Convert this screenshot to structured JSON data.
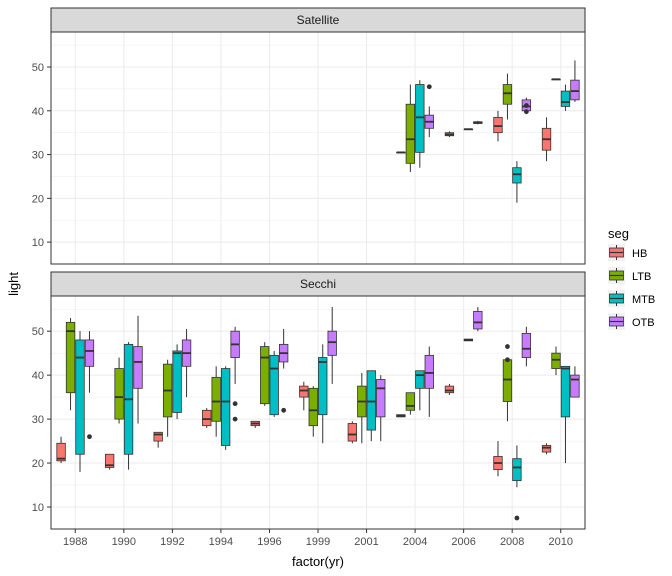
{
  "chart_data": {
    "type": "boxplot",
    "xlabel": "factor(yr)",
    "ylabel": "light",
    "x_categories": [
      "1988",
      "1990",
      "1992",
      "1994",
      "1996",
      "1999",
      "2001",
      "2004",
      "2006",
      "2008",
      "2010"
    ],
    "ylim": [
      5,
      58
    ],
    "y_ticks": [
      10,
      20,
      30,
      40,
      50
    ],
    "grid": true,
    "legend": {
      "title": "seg",
      "position": "right",
      "entries": [
        {
          "key": "HB",
          "label": "HB",
          "color": "#F8766D"
        },
        {
          "key": "LTB",
          "label": "LTB",
          "color": "#7CAE00"
        },
        {
          "key": "MTB",
          "label": "MTB",
          "color": "#00BFC4"
        },
        {
          "key": "OTB",
          "label": "OTB",
          "color": "#C77CFF"
        }
      ]
    },
    "panels": [
      {
        "strip": "Satellite",
        "boxes": [
          {
            "year": "2004",
            "seg": "HB",
            "lw": 30.5,
            "q1": 30.5,
            "med": 30.5,
            "q3": 30.5,
            "uw": 30.5,
            "outliers": []
          },
          {
            "year": "2004",
            "seg": "LTB",
            "lw": 26,
            "q1": 28,
            "med": 33.5,
            "q3": 41.5,
            "uw": 46,
            "outliers": []
          },
          {
            "year": "2004",
            "seg": "MTB",
            "lw": 27,
            "q1": 30.5,
            "med": 38.5,
            "q3": 46,
            "uw": 47,
            "outliers": []
          },
          {
            "year": "2004",
            "seg": "OTB",
            "lw": 34,
            "q1": 36,
            "med": 37.5,
            "q3": 39,
            "uw": 41,
            "outliers": [
              45.5
            ]
          },
          {
            "year": "2006",
            "seg": "HB",
            "lw": 34,
            "q1": 34.3,
            "med": 34.6,
            "q3": 35,
            "uw": 35.3,
            "outliers": []
          },
          {
            "year": "2006",
            "seg": "MTB",
            "lw": 35.8,
            "q1": 35.8,
            "med": 35.8,
            "q3": 35.8,
            "uw": 35.8,
            "outliers": []
          },
          {
            "year": "2006",
            "seg": "OTB",
            "lw": 36.9,
            "q1": 37.1,
            "med": 37.3,
            "q3": 37.5,
            "uw": 37.7,
            "outliers": []
          },
          {
            "year": "2008",
            "seg": "HB",
            "lw": 33,
            "q1": 35,
            "med": 36.5,
            "q3": 38.5,
            "uw": 40,
            "outliers": []
          },
          {
            "year": "2008",
            "seg": "LTB",
            "lw": 38,
            "q1": 41.5,
            "med": 44,
            "q3": 46,
            "uw": 48.5,
            "outliers": []
          },
          {
            "year": "2008",
            "seg": "MTB",
            "lw": 19,
            "q1": 23.5,
            "med": 25.5,
            "q3": 27,
            "uw": 28.5,
            "outliers": []
          },
          {
            "year": "2008",
            "seg": "OTB",
            "lw": 40,
            "q1": 40,
            "med": 41,
            "q3": 42.5,
            "uw": 43,
            "outliers": [
              39.8,
              41.2
            ]
          },
          {
            "year": "2010",
            "seg": "HB",
            "lw": 28.5,
            "q1": 31,
            "med": 33.5,
            "q3": 36,
            "uw": 38.5,
            "outliers": []
          },
          {
            "year": "2010",
            "seg": "LTB",
            "lw": 47.2,
            "q1": 47.2,
            "med": 47.2,
            "q3": 47.2,
            "uw": 47.2,
            "outliers": []
          },
          {
            "year": "2010",
            "seg": "MTB",
            "lw": 40,
            "q1": 41,
            "med": 42,
            "q3": 44.5,
            "uw": 46,
            "outliers": []
          },
          {
            "year": "2010",
            "seg": "OTB",
            "lw": 42,
            "q1": 42.5,
            "med": 44.5,
            "q3": 47,
            "uw": 51.5,
            "outliers": []
          }
        ]
      },
      {
        "strip": "Secchi",
        "boxes": [
          {
            "year": "1988",
            "seg": "HB",
            "lw": 20,
            "q1": 20.5,
            "med": 21,
            "q3": 24.5,
            "uw": 26,
            "outliers": []
          },
          {
            "year": "1988",
            "seg": "LTB",
            "lw": 32,
            "q1": 36,
            "med": 50,
            "q3": 52,
            "uw": 53,
            "outliers": []
          },
          {
            "year": "1988",
            "seg": "MTB",
            "lw": 18,
            "q1": 22,
            "med": 44,
            "q3": 48,
            "uw": 50,
            "outliers": []
          },
          {
            "year": "1988",
            "seg": "OTB",
            "lw": 36,
            "q1": 42,
            "med": 45.5,
            "q3": 48,
            "uw": 50,
            "outliers": [
              26
            ]
          },
          {
            "year": "1990",
            "seg": "HB",
            "lw": 18.5,
            "q1": 19,
            "med": 19.5,
            "q3": 22,
            "uw": 22,
            "outliers": []
          },
          {
            "year": "1990",
            "seg": "LTB",
            "lw": 29,
            "q1": 30,
            "med": 35,
            "q3": 41.5,
            "uw": 44,
            "outliers": []
          },
          {
            "year": "1990",
            "seg": "MTB",
            "lw": 18.5,
            "q1": 22,
            "med": 34.5,
            "q3": 47,
            "uw": 47.5,
            "outliers": []
          },
          {
            "year": "1990",
            "seg": "OTB",
            "lw": 29,
            "q1": 37,
            "med": 43,
            "q3": 46.5,
            "uw": 53.5,
            "outliers": []
          },
          {
            "year": "1992",
            "seg": "HB",
            "lw": 23.5,
            "q1": 25,
            "med": 26.5,
            "q3": 27,
            "uw": 27,
            "outliers": []
          },
          {
            "year": "1992",
            "seg": "LTB",
            "lw": 26,
            "q1": 30.5,
            "med": 36.5,
            "q3": 42.5,
            "uw": 43.5,
            "outliers": []
          },
          {
            "year": "1992",
            "seg": "MTB",
            "lw": 30,
            "q1": 31.5,
            "med": 45,
            "q3": 45.5,
            "uw": 47,
            "outliers": []
          },
          {
            "year": "1992",
            "seg": "OTB",
            "lw": 35,
            "q1": 42,
            "med": 45,
            "q3": 48,
            "uw": 50.5,
            "outliers": []
          },
          {
            "year": "1994",
            "seg": "HB",
            "lw": 28,
            "q1": 28.5,
            "med": 30,
            "q3": 32,
            "uw": 32.5,
            "outliers": []
          },
          {
            "year": "1994",
            "seg": "LTB",
            "lw": 26,
            "q1": 29.5,
            "med": 34,
            "q3": 39.5,
            "uw": 42,
            "outliers": []
          },
          {
            "year": "1994",
            "seg": "MTB",
            "lw": 23,
            "q1": 24,
            "med": 34,
            "q3": 41.5,
            "uw": 42,
            "outliers": []
          },
          {
            "year": "1994",
            "seg": "OTB",
            "lw": 38,
            "q1": 44,
            "med": 47,
            "q3": 50,
            "uw": 51,
            "outliers": [
              33.5,
              30
            ]
          },
          {
            "year": "1996",
            "seg": "HB",
            "lw": 28,
            "q1": 28.5,
            "med": 29,
            "q3": 29.5,
            "uw": 29.5,
            "outliers": []
          },
          {
            "year": "1996",
            "seg": "LTB",
            "lw": 33,
            "q1": 33.5,
            "med": 44,
            "q3": 46.5,
            "uw": 47.5,
            "outliers": []
          },
          {
            "year": "1996",
            "seg": "MTB",
            "lw": 30.5,
            "q1": 31,
            "med": 41.5,
            "q3": 44.5,
            "uw": 45.5,
            "outliers": []
          },
          {
            "year": "1996",
            "seg": "OTB",
            "lw": 41.5,
            "q1": 43,
            "med": 45,
            "q3": 47,
            "uw": 50.5,
            "outliers": [
              32
            ]
          },
          {
            "year": "1999",
            "seg": "HB",
            "lw": 32,
            "q1": 35,
            "med": 36.5,
            "q3": 37.5,
            "uw": 38.5,
            "outliers": []
          },
          {
            "year": "1999",
            "seg": "LTB",
            "lw": 26,
            "q1": 28.5,
            "med": 32,
            "q3": 37,
            "uw": 37.5,
            "outliers": []
          },
          {
            "year": "1999",
            "seg": "MTB",
            "lw": 24.5,
            "q1": 31,
            "med": 43,
            "q3": 44,
            "uw": 47,
            "outliers": []
          },
          {
            "year": "1999",
            "seg": "OTB",
            "lw": 38,
            "q1": 44.5,
            "med": 47.5,
            "q3": 50,
            "uw": 55.5,
            "outliers": []
          },
          {
            "year": "2001",
            "seg": "HB",
            "lw": 24.5,
            "q1": 25,
            "med": 26.5,
            "q3": 29,
            "uw": 29.5,
            "outliers": []
          },
          {
            "year": "2001",
            "seg": "LTB",
            "lw": 24.5,
            "q1": 30.5,
            "med": 34,
            "q3": 37.5,
            "uw": 40.5,
            "outliers": []
          },
          {
            "year": "2001",
            "seg": "MTB",
            "lw": 25,
            "q1": 27.5,
            "med": 34,
            "q3": 41,
            "uw": 41,
            "outliers": []
          },
          {
            "year": "2001",
            "seg": "OTB",
            "lw": 25,
            "q1": 30.5,
            "med": 37,
            "q3": 39,
            "uw": 40,
            "outliers": []
          },
          {
            "year": "2004",
            "seg": "HB",
            "lw": 30.5,
            "q1": 30.5,
            "med": 30.8,
            "q3": 31,
            "uw": 31,
            "outliers": []
          },
          {
            "year": "2004",
            "seg": "LTB",
            "lw": 31,
            "q1": 32,
            "med": 33,
            "q3": 36,
            "uw": 36,
            "outliers": []
          },
          {
            "year": "2004",
            "seg": "MTB",
            "lw": 32,
            "q1": 37,
            "med": 40,
            "q3": 41,
            "uw": 41,
            "outliers": []
          },
          {
            "year": "2004",
            "seg": "OTB",
            "lw": 30.5,
            "q1": 37,
            "med": 40.5,
            "q3": 44.5,
            "uw": 46.5,
            "outliers": []
          },
          {
            "year": "2006",
            "seg": "HB",
            "lw": 35.5,
            "q1": 36,
            "med": 36.5,
            "q3": 37.5,
            "uw": 38,
            "outliers": []
          },
          {
            "year": "2006",
            "seg": "MTB",
            "lw": 47.8,
            "q1": 47.8,
            "med": 48,
            "q3": 48.2,
            "uw": 48.2,
            "outliers": []
          },
          {
            "year": "2006",
            "seg": "OTB",
            "lw": 50,
            "q1": 50.5,
            "med": 52,
            "q3": 54.5,
            "uw": 55.5,
            "outliers": []
          },
          {
            "year": "2008",
            "seg": "HB",
            "lw": 17,
            "q1": 18.5,
            "med": 20,
            "q3": 21.5,
            "uw": 25,
            "outliers": []
          },
          {
            "year": "2008",
            "seg": "LTB",
            "lw": 29.5,
            "q1": 34,
            "med": 39,
            "q3": 43.5,
            "uw": 44,
            "outliers": [
              46.5,
              43.5
            ]
          },
          {
            "year": "2008",
            "seg": "MTB",
            "lw": 14.5,
            "q1": 16,
            "med": 19,
            "q3": 21,
            "uw": 24,
            "outliers": [
              7.5
            ]
          },
          {
            "year": "2008",
            "seg": "OTB",
            "lw": 42,
            "q1": 44,
            "med": 46,
            "q3": 49.5,
            "uw": 51,
            "outliers": []
          },
          {
            "year": "2010",
            "seg": "HB",
            "lw": 22,
            "q1": 22.5,
            "med": 23.5,
            "q3": 24,
            "uw": 24.5,
            "outliers": []
          },
          {
            "year": "2010",
            "seg": "LTB",
            "lw": 40,
            "q1": 41.5,
            "med": 43.5,
            "q3": 45,
            "uw": 46.5,
            "outliers": []
          },
          {
            "year": "2010",
            "seg": "MTB",
            "lw": 20,
            "q1": 30.5,
            "med": 41.5,
            "q3": 42,
            "uw": 42,
            "outliers": []
          },
          {
            "year": "2010",
            "seg": "OTB",
            "lw": 35,
            "q1": 35,
            "med": 39,
            "q3": 40,
            "uw": 42,
            "outliers": []
          }
        ]
      }
    ]
  }
}
